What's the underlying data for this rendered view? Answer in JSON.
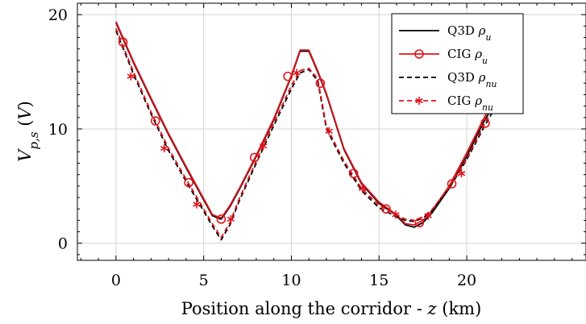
{
  "chart_data": {
    "type": "line",
    "xlabel": "Position along the corridor - z (km)",
    "ylabel": "V_{p,s} (V)",
    "xlim": [
      -2.2,
      26.8
    ],
    "ylim": [
      -1.5,
      21.0
    ],
    "xticks": [
      0,
      5,
      10,
      15,
      20
    ],
    "yticks": [
      0,
      10,
      20
    ],
    "grid": true,
    "legend_position": "top-right",
    "series": [
      {
        "name": "Q3D ρ_u",
        "style": "solid",
        "color": "#000000",
        "marker": "none",
        "x": [
          0,
          1,
          2,
          3,
          4,
          5,
          5.5,
          6,
          6.5,
          7,
          8,
          9,
          10,
          10.5,
          11,
          11.5,
          12,
          13,
          14,
          15,
          16,
          16.5,
          17,
          17.5,
          18,
          19,
          20,
          21,
          22
        ],
        "y": [
          19.3,
          15.8,
          12.6,
          9.5,
          6.6,
          3.8,
          2.4,
          2.1,
          3.2,
          4.6,
          7.6,
          10.8,
          14.6,
          16.8,
          16.8,
          15.0,
          13.0,
          8.2,
          5.2,
          3.5,
          2.4,
          1.6,
          1.4,
          1.8,
          2.6,
          4.8,
          7.6,
          10.7,
          13.3
        ]
      },
      {
        "name": "CIG ρ_u",
        "style": "solid",
        "color": "#e0141c",
        "marker": "circle",
        "x": [
          0,
          1,
          2,
          3,
          4,
          5,
          5.5,
          6,
          6.5,
          7,
          8,
          9,
          10,
          10.5,
          11,
          11.5,
          12,
          13,
          14,
          15,
          16,
          16.5,
          17,
          17.5,
          18,
          19,
          20,
          21,
          22
        ],
        "y": [
          19.4,
          15.9,
          12.7,
          9.6,
          6.7,
          3.9,
          2.5,
          2.2,
          3.3,
          4.7,
          7.7,
          10.9,
          14.7,
          16.9,
          16.9,
          15.1,
          13.1,
          8.3,
          5.3,
          3.6,
          2.5,
          1.7,
          1.6,
          2.0,
          2.8,
          5.0,
          7.9,
          11.0,
          13.9
        ],
        "marker_x": [
          0.4,
          2.25,
          4.15,
          6.0,
          7.9,
          9.8,
          11.65,
          13.55,
          15.4,
          17.3,
          19.15,
          21.05
        ],
        "marker_y": [
          17.6,
          10.7,
          5.3,
          2.1,
          7.5,
          14.6,
          14.0,
          6.1,
          3.0,
          1.8,
          5.2,
          10.5
        ]
      },
      {
        "name": "Q3D ρ_nu",
        "style": "dashed",
        "color": "#000000",
        "marker": "none",
        "x": [
          0,
          1,
          2,
          3,
          4,
          5,
          5.5,
          6,
          6.5,
          7,
          8,
          9,
          10,
          10.5,
          11,
          11.5,
          12,
          13,
          14,
          15,
          16,
          16.5,
          17,
          17.5,
          18,
          19,
          20,
          21,
          22
        ],
        "y": [
          18.6,
          14.8,
          11.3,
          8.1,
          5.4,
          2.8,
          1.5,
          0.3,
          1.6,
          3.6,
          7.0,
          10.3,
          13.5,
          14.9,
          15.2,
          14.2,
          10.0,
          7.0,
          4.6,
          3.1,
          2.3,
          2.0,
          1.9,
          2.2,
          2.8,
          4.8,
          7.3,
          10.2,
          12.9
        ]
      },
      {
        "name": "CIG ρ_nu",
        "style": "dashed",
        "color": "#e0141c",
        "marker": "asterisk",
        "x": [
          0,
          1,
          2,
          3,
          4,
          5,
          5.5,
          6,
          6.5,
          7,
          8,
          9,
          10,
          10.5,
          11,
          11.5,
          12,
          13,
          14,
          15,
          16,
          16.5,
          17,
          17.5,
          18,
          19,
          20,
          21,
          22
        ],
        "y": [
          18.8,
          15.0,
          11.5,
          8.3,
          5.6,
          3.0,
          1.7,
          0.5,
          1.8,
          3.8,
          7.2,
          10.5,
          13.8,
          15.1,
          15.3,
          14.4,
          10.2,
          7.2,
          4.8,
          3.3,
          2.5,
          2.1,
          2.0,
          2.3,
          2.9,
          4.9,
          7.4,
          10.4,
          13.1
        ],
        "marker_x": [
          0.85,
          2.75,
          4.6,
          6.55,
          8.4,
          10.3,
          12.15,
          14.05,
          15.95,
          17.8,
          19.7,
          21.55
        ],
        "marker_y": [
          14.6,
          8.3,
          3.4,
          2.1,
          8.5,
          14.9,
          9.8,
          4.8,
          2.5,
          2.4,
          6.1,
          11.8
        ]
      }
    ]
  }
}
